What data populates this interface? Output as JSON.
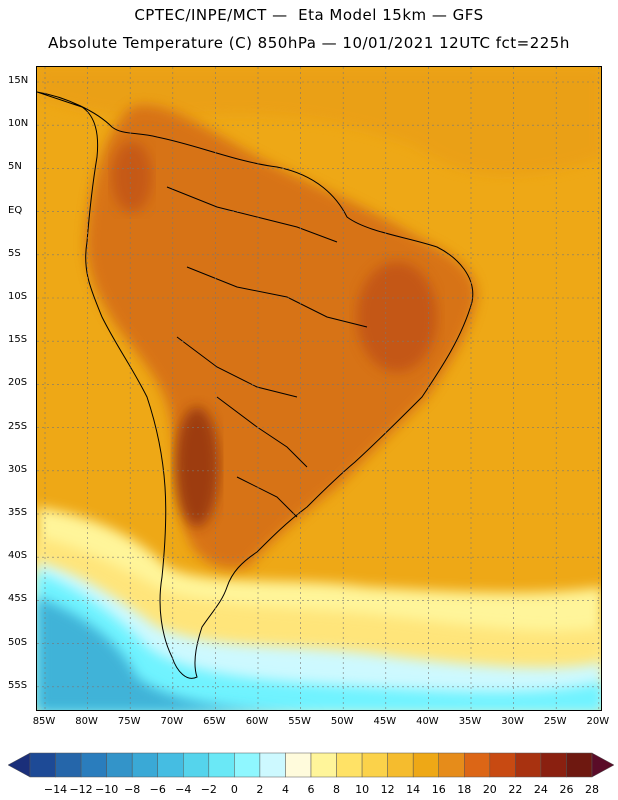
{
  "header": {
    "line1": "CPTEC/INPE/MCT —  Eta Model 15km — GFS",
    "line2": "Absolute Temperature (C) 850hPa — 10/01/2021 12UTC fct=225h"
  },
  "map": {
    "region": "South America",
    "lat_labels": [
      "15N",
      "10N",
      "5N",
      "EQ",
      "5S",
      "10S",
      "15S",
      "20S",
      "25S",
      "30S",
      "35S",
      "40S",
      "45S",
      "50S",
      "55S"
    ],
    "lon_labels": [
      "85W",
      "80W",
      "75W",
      "70W",
      "65W",
      "60W",
      "55W",
      "50W",
      "45W",
      "40W",
      "35W",
      "30W",
      "25W",
      "20W"
    ],
    "ocean_color": "#eea816",
    "hot_color": "#d46a14",
    "hottest_color": "#8a2a10",
    "cool_band_color": "#ffe57a",
    "cold_band_color": "#6ff3ff",
    "coldest_color": "#3fb3d8"
  },
  "colorbar": {
    "labels": [
      "-14",
      "-12",
      "-10",
      "-8",
      "-6",
      "-4",
      "-2",
      "0",
      "2",
      "4",
      "6",
      "8",
      "10",
      "12",
      "14",
      "16",
      "18",
      "20",
      "22",
      "24",
      "26",
      "28"
    ],
    "colors": [
      "#1a2f7a",
      "#1d4a96",
      "#2566aa",
      "#2a7dbd",
      "#3394c9",
      "#3aa9d6",
      "#45bde2",
      "#55d4ec",
      "#6ae8f6",
      "#8ff7ff",
      "#cdf9ff",
      "#fffbdc",
      "#fff59a",
      "#ffe266",
      "#fbd24a",
      "#f5bc2e",
      "#eea816",
      "#e68c1a",
      "#dc6616",
      "#c84a12",
      "#a83210",
      "#8a2010",
      "#6e1810",
      "#5a0c28"
    ]
  }
}
